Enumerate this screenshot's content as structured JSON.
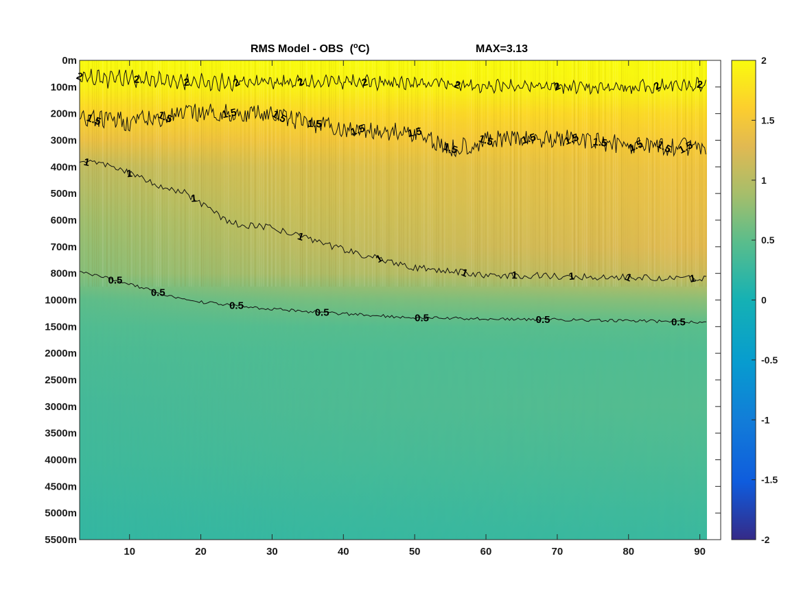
{
  "chart_data": {
    "type": "heatmap",
    "title": "RMS Model - OBS",
    "title_unit_base": "(",
    "title_unit_sup": "o",
    "title_unit_end": "C)",
    "max_label": "MAX=3.13",
    "x_ticks": [
      10,
      20,
      30,
      40,
      50,
      60,
      70,
      80,
      90
    ],
    "x_range": [
      3,
      91
    ],
    "y_tick_labels": [
      "0m",
      "100m",
      "200m",
      "300m",
      "400m",
      "500m",
      "600m",
      "700m",
      "800m",
      "1000m",
      "1500m",
      "2000m",
      "2500m",
      "3000m",
      "3500m",
      "4000m",
      "4500m",
      "5000m",
      "5500m"
    ],
    "colorbar": {
      "range": [
        -2,
        2
      ],
      "ticks": [
        "2",
        "1.5",
        "1",
        "0.5",
        "0",
        "-0.5",
        "-1",
        "-1.5",
        "-2"
      ],
      "colormap": "parula"
    },
    "contour_levels": [
      2,
      1.5,
      1,
      0.5
    ],
    "contours": [
      {
        "level": 2,
        "depth_m_by_x": [
          [
            3,
            60
          ],
          [
            20,
            85
          ],
          [
            40,
            80
          ],
          [
            60,
            95
          ],
          [
            80,
            100
          ],
          [
            91,
            90
          ]
        ],
        "labels_at_x": [
          3,
          11,
          18,
          25,
          34,
          43,
          56,
          70,
          84,
          90
        ]
      },
      {
        "level": 1.5,
        "depth_m_by_x": [
          [
            3,
            220
          ],
          [
            10,
            230
          ],
          [
            20,
            195
          ],
          [
            30,
            205
          ],
          [
            40,
            260
          ],
          [
            50,
            270
          ],
          [
            55,
            330
          ],
          [
            60,
            300
          ],
          [
            70,
            290
          ],
          [
            80,
            320
          ],
          [
            91,
            330
          ]
        ],
        "labels_at_x": [
          5,
          15,
          24,
          31,
          36,
          42,
          50,
          55,
          60,
          66,
          72,
          76,
          81,
          85,
          88
        ]
      },
      {
        "level": 1,
        "depth_m_by_x": [
          [
            3,
            380
          ],
          [
            7,
            390
          ],
          [
            13,
            460
          ],
          [
            18,
            500
          ],
          [
            24,
            610
          ],
          [
            30,
            630
          ],
          [
            40,
            710
          ],
          [
            50,
            780
          ],
          [
            55,
            790
          ],
          [
            60,
            810
          ],
          [
            70,
            820
          ],
          [
            80,
            830
          ],
          [
            91,
            840
          ]
        ],
        "labels_at_x": [
          4,
          10,
          19,
          34,
          45,
          57,
          64,
          72,
          80,
          89
        ]
      },
      {
        "level": 0.5,
        "depth_m_by_x": [
          [
            3,
            790
          ],
          [
            8,
            850
          ],
          [
            15,
            960
          ],
          [
            20,
            1040
          ],
          [
            30,
            1170
          ],
          [
            40,
            1260
          ],
          [
            50,
            1330
          ],
          [
            60,
            1350
          ],
          [
            70,
            1370
          ],
          [
            80,
            1390
          ],
          [
            91,
            1420
          ]
        ],
        "labels_at_x": [
          8,
          14,
          25,
          37,
          51,
          68,
          87
        ]
      }
    ],
    "contour_label_texts": [
      "2",
      "1.5",
      "1",
      "0.5"
    ],
    "field_description_values": {
      "depth_bands_m": [
        0,
        100,
        200,
        300,
        400,
        500,
        600,
        700,
        800,
        1000,
        1500,
        2000,
        3000,
        4000,
        5000,
        5500
      ],
      "rms_at_x_start": [
        2.0,
        1.9,
        1.65,
        1.4,
        1.05,
        0.95,
        0.85,
        0.78,
        0.72,
        0.5,
        0.42,
        0.38,
        0.33,
        0.3,
        0.24,
        0.22
      ],
      "rms_at_x_end": [
        2.0,
        1.95,
        1.7,
        1.55,
        1.45,
        1.4,
        1.35,
        1.3,
        1.15,
        0.75,
        0.48,
        0.42,
        0.45,
        0.38,
        0.3,
        0.26
      ]
    }
  }
}
